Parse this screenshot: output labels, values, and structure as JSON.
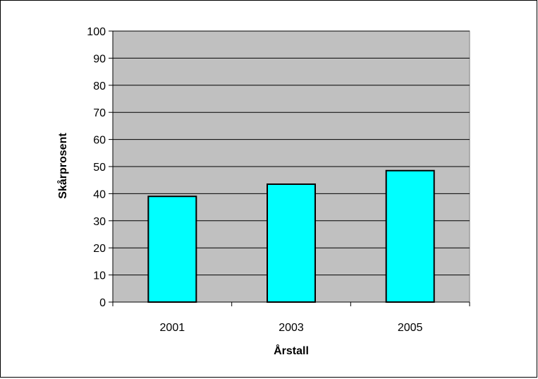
{
  "chart_data": {
    "type": "bar",
    "categories": [
      "2001",
      "2003",
      "2005"
    ],
    "values": [
      39,
      43.5,
      48.5
    ],
    "title": "",
    "xlabel": "Årstall",
    "ylabel": "Skårprosent",
    "ylim": [
      0,
      100
    ],
    "yticks": [
      0,
      10,
      20,
      30,
      40,
      50,
      60,
      70,
      80,
      90,
      100
    ],
    "ytick_labels": [
      "0",
      "10",
      "20",
      "30",
      "40",
      "50",
      "60",
      "70",
      "80",
      "90",
      "100"
    ],
    "grid": true,
    "legend": "none",
    "colors": {
      "bar_fill": "#00FFFF",
      "plot_background": "#C0C0C0",
      "gridline": "#000000"
    }
  }
}
